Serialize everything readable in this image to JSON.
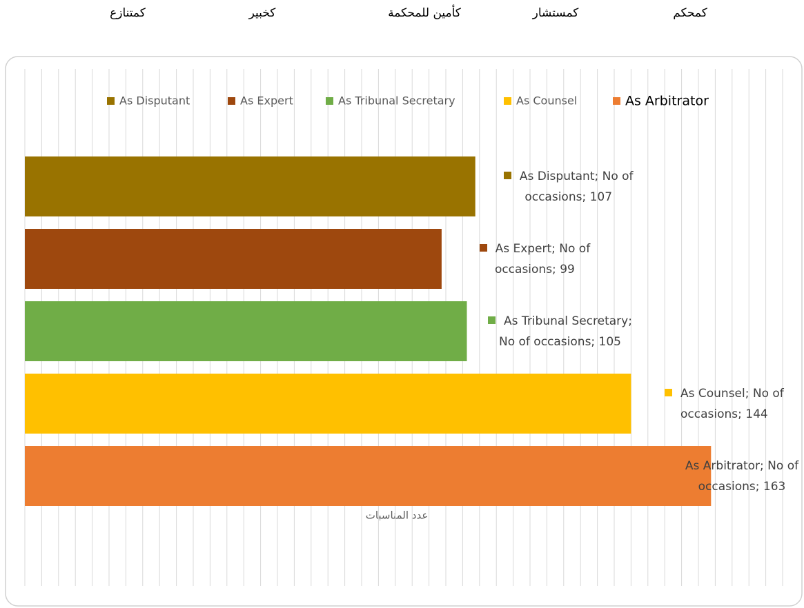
{
  "chart_data": {
    "type": "bar",
    "orientation": "horizontal",
    "annotations": [
      "كمحكم",
      "كمستشار",
      "كأمين للمحكمة",
      "كخبير",
      "كمتنازع"
    ],
    "categories": [
      "As Disputant",
      "As Expert",
      "As Tribunal Secretary",
      "As Counsel",
      "As Arbitrator"
    ],
    "values": [
      107,
      99,
      105,
      144,
      163
    ],
    "value_labels": [
      "As Disputant; No of occasions; 107",
      "As Expert; No of occasions; 99",
      "As Tribunal Secretary; No of occasions; 105",
      "As Counsel; No of occasions; 144",
      "As Arbitrator; No of occasions; 163"
    ],
    "colors": [
      "#997300",
      "#9e480e",
      "#70ad47",
      "#ffc000",
      "#ed7d31"
    ],
    "x_label": "عدد المناسبات",
    "xlim": [
      0,
      180
    ],
    "xticks": [
      0,
      4,
      8,
      12,
      16,
      20,
      24,
      28,
      32,
      36,
      40,
      44,
      48,
      52,
      56,
      60,
      64,
      68,
      72,
      76,
      80,
      84,
      88,
      92,
      96,
      100,
      104,
      108,
      112,
      116,
      120,
      124,
      128,
      132,
      136,
      140,
      144,
      148,
      152,
      156,
      160,
      164,
      168,
      172,
      176,
      180
    ],
    "tick_labels": false,
    "grid": true,
    "legend": "top"
  }
}
